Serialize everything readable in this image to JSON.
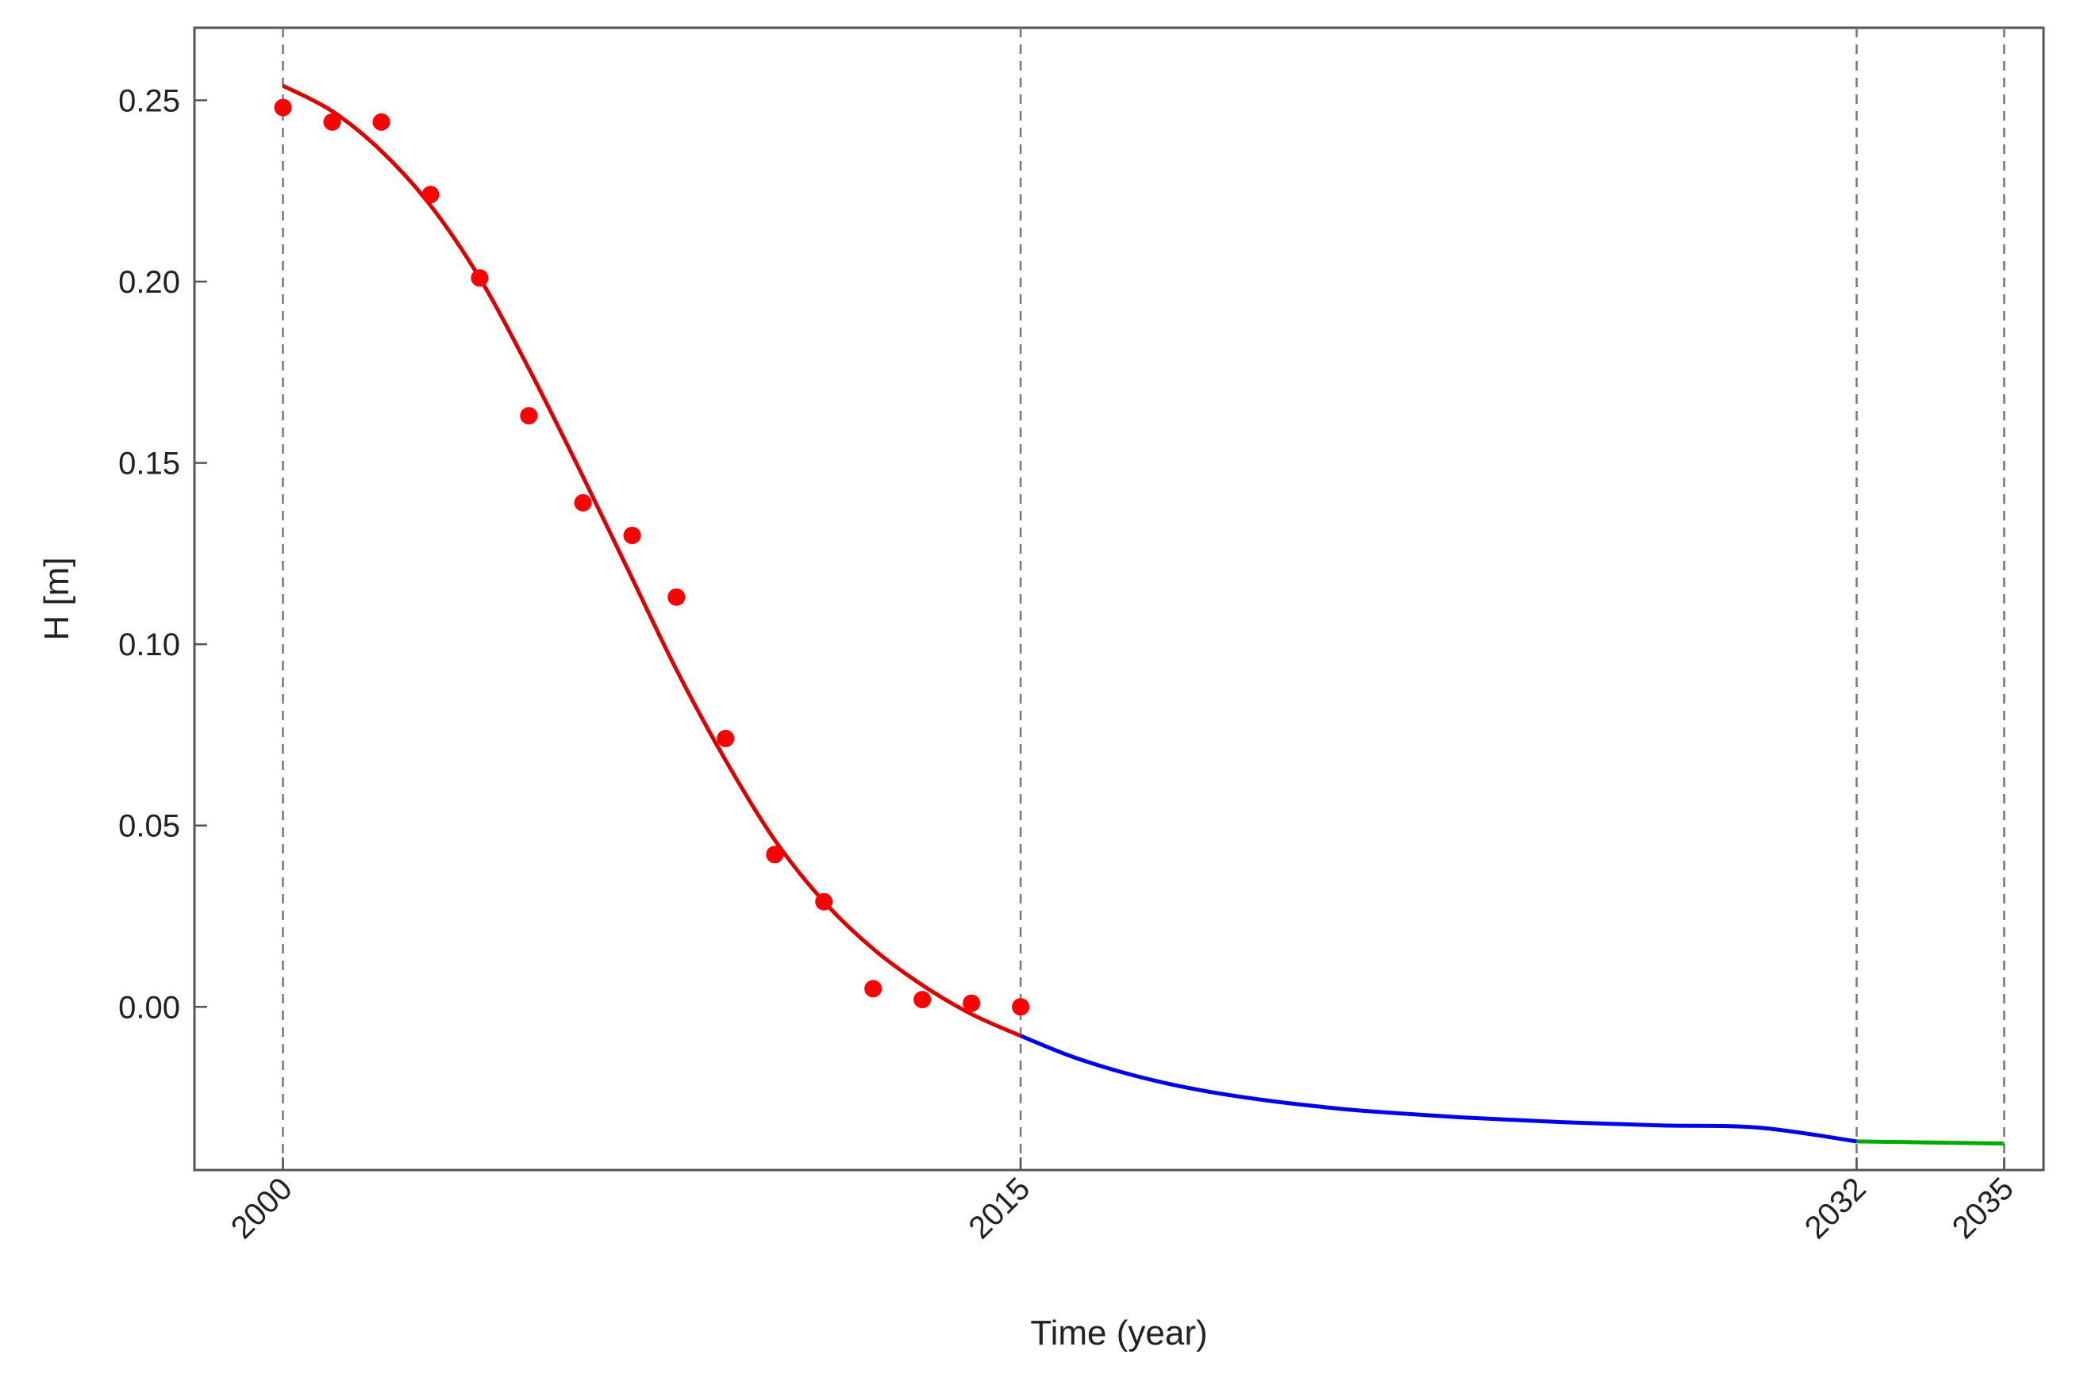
{
  "chart_data": {
    "type": "line",
    "title": "",
    "xlabel": "Time (year)",
    "ylabel": "H [m]",
    "xlim": [
      1998.2,
      2035.8
    ],
    "ylim": [
      -0.045,
      0.27
    ],
    "x_ticks": [
      2000,
      2015,
      2032,
      2035
    ],
    "x_tick_labels": [
      "2000",
      "2015",
      "2032",
      "2035"
    ],
    "y_ticks": [
      0.0,
      0.05,
      0.1,
      0.15,
      0.2,
      0.25
    ],
    "y_tick_labels": [
      "0.00",
      "0.05",
      "0.10",
      "0.15",
      "0.20",
      "0.25"
    ],
    "vertical_reference_lines": [
      2000,
      2015,
      2032,
      2035
    ],
    "grid": false,
    "series": [
      {
        "kind": "scatter",
        "color": "#ff0000",
        "x": [
          2000,
          2001,
          2002,
          2003,
          2004,
          2005,
          2006.1,
          2007.1,
          2008,
          2009,
          2010,
          2011,
          2012,
          2013,
          2014,
          2015
        ],
        "y": [
          0.248,
          0.244,
          0.244,
          0.224,
          0.201,
          0.163,
          0.139,
          0.13,
          0.113,
          0.074,
          0.042,
          0.029,
          0.005,
          0.002,
          0.001,
          0.0
        ]
      },
      {
        "kind": "line",
        "color": "#dd0000",
        "x": [
          2000,
          2001,
          2002,
          2003,
          2004,
          2005,
          2006,
          2007,
          2008,
          2009,
          2010,
          2011,
          2012,
          2013,
          2014,
          2015
        ],
        "y": [
          0.254,
          0.247,
          0.236,
          0.221,
          0.201,
          0.176,
          0.149,
          0.121,
          0.093,
          0.068,
          0.046,
          0.029,
          0.016,
          0.006,
          -0.002,
          -0.008
        ]
      },
      {
        "kind": "line",
        "color": "#0000ee",
        "x": [
          2015,
          2016,
          2017,
          2018,
          2019,
          2020,
          2021,
          2022,
          2024,
          2026,
          2028,
          2030,
          2032
        ],
        "y": [
          -0.008,
          -0.0135,
          -0.0178,
          -0.0212,
          -0.0238,
          -0.0258,
          -0.0274,
          -0.0287,
          -0.0305,
          -0.0318,
          -0.0327,
          -0.0333,
          -0.0371
        ]
      },
      {
        "kind": "line",
        "color": "#00aa00",
        "x": [
          2032,
          2033,
          2034,
          2035
        ],
        "y": [
          -0.0371,
          -0.0373,
          -0.0375,
          -0.0377
        ]
      }
    ]
  }
}
